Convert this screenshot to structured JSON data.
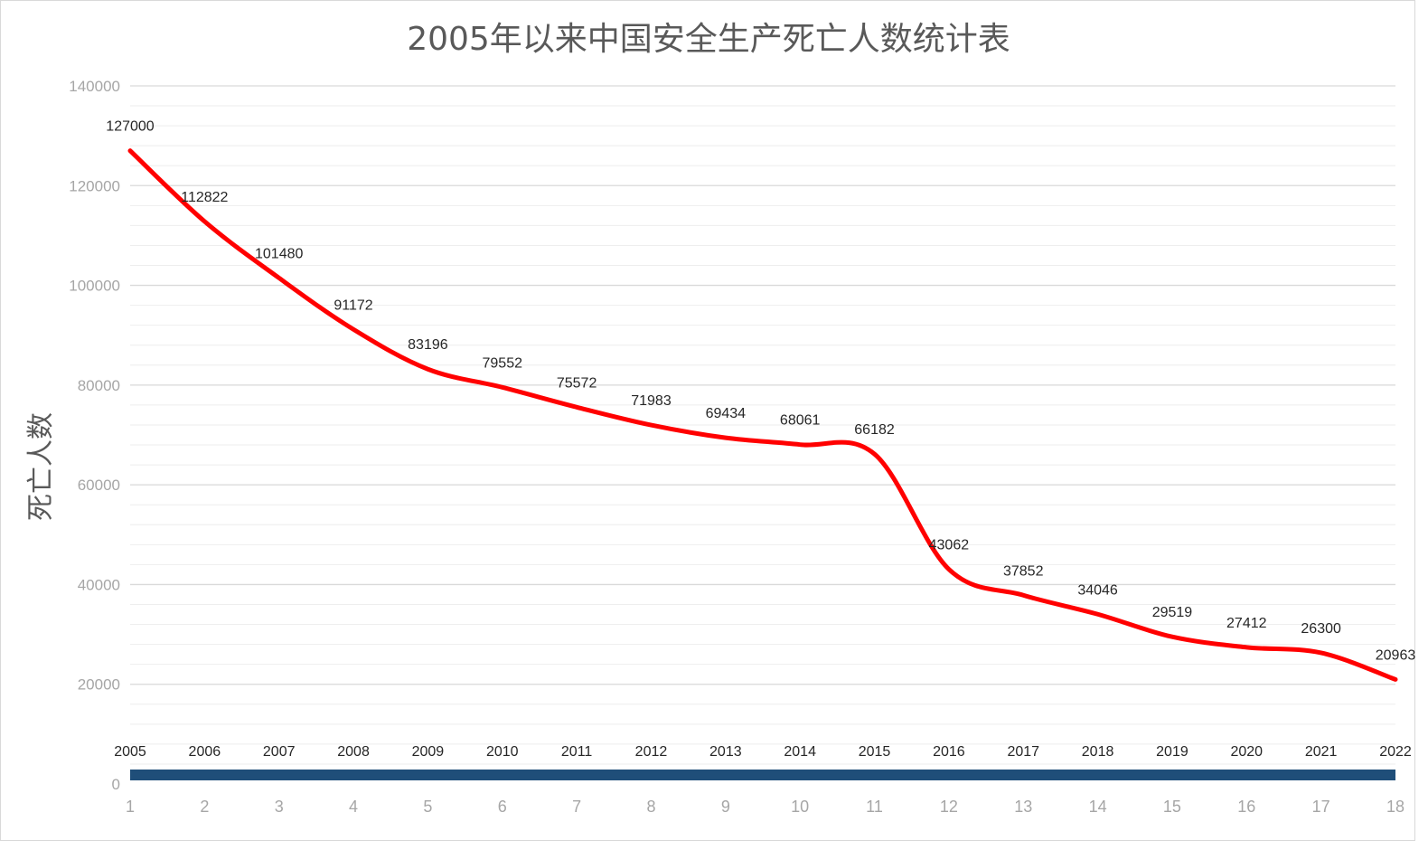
{
  "chart_data": {
    "type": "line",
    "title": "2005年以来中国安全生产死亡人数统计表",
    "ylabel": "死亡人数",
    "xlabel": "",
    "x": [
      1,
      2,
      3,
      4,
      5,
      6,
      7,
      8,
      9,
      10,
      11,
      12,
      13,
      14,
      15,
      16,
      17,
      18
    ],
    "categories": [
      "2005",
      "2006",
      "2007",
      "2008",
      "2009",
      "2010",
      "2011",
      "2012",
      "2013",
      "2014",
      "2015",
      "2016",
      "2017",
      "2018",
      "2019",
      "2020",
      "2021",
      "2022"
    ],
    "series": [
      {
        "values": [
          127000,
          112822,
          101480,
          91172,
          83196,
          79552,
          75572,
          71983,
          69434,
          68061,
          66182,
          43062,
          37852,
          34046,
          29519,
          27412,
          26300,
          20963
        ],
        "color": "#ff0000",
        "smooth": true,
        "data_labels": true
      },
      {
        "values": [
          0,
          0,
          0,
          0,
          0,
          0,
          0,
          0,
          0,
          0,
          0,
          0,
          0,
          0,
          0,
          0,
          0,
          0
        ],
        "color": "#1f4e79",
        "note_labels": "category year labels"
      }
    ],
    "xlim": [
      1,
      18
    ],
    "ylim": [
      0,
      140000
    ],
    "yticks": [
      0,
      20000,
      40000,
      60000,
      80000,
      100000,
      120000,
      140000
    ],
    "xticks": [
      "1",
      "2",
      "3",
      "4",
      "5",
      "6",
      "7",
      "8",
      "9",
      "10",
      "11",
      "12",
      "13",
      "14",
      "15",
      "16",
      "17",
      "18"
    ],
    "grid": true,
    "legend": "none"
  }
}
